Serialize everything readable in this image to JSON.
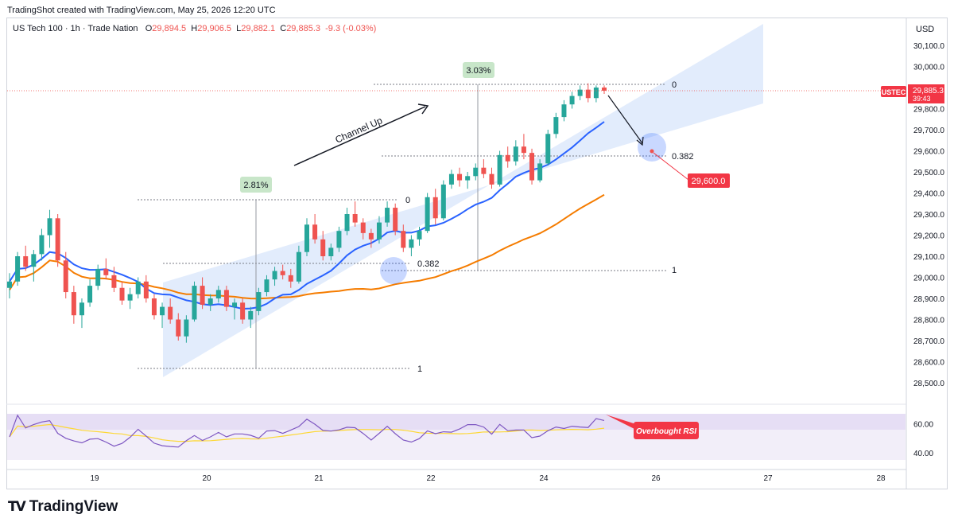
{
  "header": {
    "credit": "TradingShot created with TradingView.com, May 25, 2026 12:20 UTC"
  },
  "legend": {
    "symbol": "US Tech 100 · 1h · Trade Nation",
    "open_label": "O",
    "open": "29,894.5",
    "high_label": "H",
    "high": "29,906.5",
    "low_label": "L",
    "low": "29,882.1",
    "close_label": "C",
    "close": "29,885.3",
    "change": "-9.3 (-0.03%)"
  },
  "price_axis": {
    "currency": "USD"
  },
  "last_price": {
    "ticker": "USTEC",
    "price": "29,885.3",
    "countdown": "39:43"
  },
  "target_label": "29,600.0",
  "rsi_annotation": "Overbought RSI",
  "annotation_text": "Channel Up",
  "footer": {
    "brand": "TradingView"
  },
  "colors": {
    "up": "#26a69a",
    "down": "#ef5350",
    "ma_fast": "#2962ff",
    "ma_slow": "#f57c00",
    "channel": "#dbe7fb",
    "rsi": "#7e57c2",
    "rsi_ma": "#fdd835",
    "alert": "#f23645"
  },
  "chart_data": {
    "type": "candlestick",
    "title": "",
    "price_ticks": [
      28500,
      28600,
      28700,
      28800,
      28900,
      29000,
      29100,
      29200,
      29300,
      29400,
      29500,
      29600,
      29700,
      29800,
      29900,
      30000,
      30100
    ],
    "price_tick_labels": [
      "28,500.0",
      "28,600.0",
      "28,700.0",
      "28,800.0",
      "28,900.0",
      "29,000.0",
      "29,100.0",
      "29,200.0",
      "29,300.0",
      "29,400.0",
      "29,500.0",
      "29,600.0",
      "29,700.0",
      "29,800.0",
      "29,900.0",
      "30,000.0",
      "30,100.0"
    ],
    "ylim": [
      28420,
      30180
    ],
    "date_ticks": [
      "19",
      "20",
      "21",
      "22",
      "23",
      "24",
      "25",
      "26",
      "27",
      "28"
    ],
    "rsi_ticks": [
      40,
      60
    ],
    "rsi_tick_labels": [
      "40.00",
      "60.00"
    ],
    "rsi_range": [
      35,
      67
    ],
    "candles_ohlc": [
      [
        28950,
        29020,
        28900,
        28980
      ],
      [
        28980,
        29120,
        28960,
        29100
      ],
      [
        29100,
        29150,
        29030,
        29050
      ],
      [
        29050,
        29130,
        28980,
        29110
      ],
      [
        29110,
        29230,
        29080,
        29200
      ],
      [
        29200,
        29320,
        29140,
        29280
      ],
      [
        29280,
        29300,
        29050,
        29080
      ],
      [
        29080,
        29120,
        28900,
        28930
      ],
      [
        28930,
        28960,
        28780,
        28820
      ],
      [
        28820,
        28900,
        28760,
        28880
      ],
      [
        28880,
        28990,
        28860,
        28960
      ],
      [
        28960,
        29060,
        28940,
        29040
      ],
      [
        29040,
        29090,
        28990,
        29010
      ],
      [
        29010,
        29050,
        28930,
        28950
      ],
      [
        28950,
        28980,
        28870,
        28890
      ],
      [
        28890,
        28950,
        28850,
        28920
      ],
      [
        28920,
        29000,
        28900,
        28980
      ],
      [
        28980,
        29010,
        28880,
        28900
      ],
      [
        28900,
        28920,
        28800,
        28820
      ],
      [
        28820,
        28880,
        28760,
        28860
      ],
      [
        28860,
        28900,
        28780,
        28800
      ],
      [
        28800,
        28830,
        28700,
        28720
      ],
      [
        28720,
        28820,
        28690,
        28800
      ],
      [
        28800,
        28980,
        28790,
        28960
      ],
      [
        28960,
        29000,
        28850,
        28870
      ],
      [
        28870,
        28920,
        28840,
        28900
      ],
      [
        28900,
        28960,
        28880,
        28940
      ],
      [
        28940,
        28960,
        28840,
        28860
      ],
      [
        28860,
        28900,
        28800,
        28880
      ],
      [
        28880,
        28900,
        28780,
        28800
      ],
      [
        28800,
        28860,
        28760,
        28840
      ],
      [
        28840,
        28950,
        28820,
        28930
      ],
      [
        28930,
        29010,
        28910,
        28990
      ],
      [
        28990,
        29050,
        28960,
        29030
      ],
      [
        29030,
        29060,
        28990,
        29010
      ],
      [
        29010,
        29040,
        28950,
        28980
      ],
      [
        28980,
        29150,
        28970,
        29120
      ],
      [
        29120,
        29280,
        29100,
        29250
      ],
      [
        29250,
        29300,
        29160,
        29180
      ],
      [
        29180,
        29220,
        29080,
        29100
      ],
      [
        29100,
        29160,
        29080,
        29140
      ],
      [
        29140,
        29240,
        29120,
        29220
      ],
      [
        29220,
        29330,
        29200,
        29300
      ],
      [
        29300,
        29360,
        29240,
        29260
      ],
      [
        29260,
        29280,
        29180,
        29210
      ],
      [
        29210,
        29230,
        29140,
        29180
      ],
      [
        29180,
        29290,
        29160,
        29260
      ],
      [
        29260,
        29360,
        29240,
        29330
      ],
      [
        29330,
        29350,
        29200,
        29220
      ],
      [
        29220,
        29250,
        29120,
        29140
      ],
      [
        29140,
        29200,
        29100,
        29180
      ],
      [
        29180,
        29240,
        29150,
        29220
      ],
      [
        29220,
        29400,
        29210,
        29380
      ],
      [
        29380,
        29420,
        29250,
        29280
      ],
      [
        29280,
        29460,
        29270,
        29440
      ],
      [
        29440,
        29510,
        29420,
        29490
      ],
      [
        29490,
        29520,
        29430,
        29460
      ],
      [
        29460,
        29500,
        29420,
        29480
      ],
      [
        29480,
        29540,
        29460,
        29520
      ],
      [
        29520,
        29560,
        29470,
        29490
      ],
      [
        29490,
        29520,
        29420,
        29440
      ],
      [
        29440,
        29600,
        29430,
        29580
      ],
      [
        29580,
        29620,
        29520,
        29550
      ],
      [
        29550,
        29650,
        29530,
        29620
      ],
      [
        29620,
        29680,
        29560,
        29590
      ],
      [
        29590,
        29610,
        29440,
        29460
      ],
      [
        29460,
        29560,
        29450,
        29540
      ],
      [
        29540,
        29700,
        29530,
        29680
      ],
      [
        29680,
        29780,
        29660,
        29760
      ],
      [
        29760,
        29840,
        29740,
        29820
      ],
      [
        29820,
        29880,
        29800,
        29860
      ],
      [
        29860,
        29910,
        29840,
        29890
      ],
      [
        29890,
        29920,
        29830,
        29850
      ],
      [
        29850,
        29910,
        29830,
        29900
      ],
      [
        29900,
        29910,
        29870,
        29885
      ]
    ],
    "ema_fast": {
      "name": "",
      "color": "#2962ff"
    },
    "ema_slow": {
      "name": "",
      "color": "#f57c00"
    },
    "fib_1": {
      "levels": [
        "0",
        "0.382",
        "1"
      ],
      "change_label": "2.81%"
    },
    "fib_2": {
      "levels": [
        "0",
        "0.382",
        "1"
      ],
      "change_label": "3.03%"
    }
  }
}
